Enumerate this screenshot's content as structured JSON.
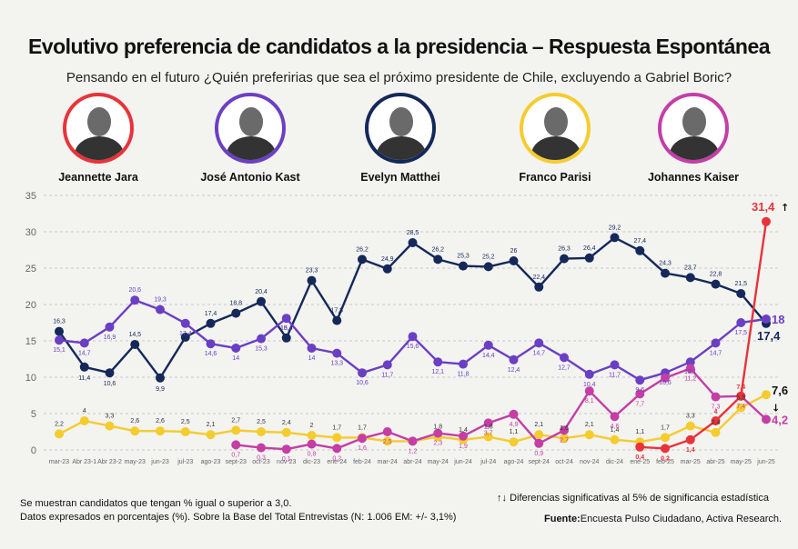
{
  "title": "Evolutivo preferencia de candidatos a la presidencia – Respuesta Espontánea",
  "subtitle": "Pensando en el futuro ¿Quién preferirias que sea el próximo presidente de Chile, excluyendo a Gabriel Boric?",
  "candidates": [
    {
      "name": "Jeannette Jara",
      "color": "#e8333a",
      "icon": "jara-portrait-icon"
    },
    {
      "name": "José Antonio Kast",
      "color": "#6b3fc4",
      "icon": "kast-portrait-icon"
    },
    {
      "name": "Evelyn Matthei",
      "color": "#15285a",
      "icon": "matthei-portrait-icon"
    },
    {
      "name": "Franco Parisi",
      "color": "#f5cc2e",
      "icon": "parisi-portrait-icon"
    },
    {
      "name": "Johannes Kaiser",
      "color": "#c43ea6",
      "icon": "kaiser-portrait-icon"
    }
  ],
  "footnotes": {
    "note1": "Se muestran candidatos que tengan % igual o superior a 3,0.",
    "note2": "Datos expresados en porcentajes (%). Sobre la Base del Total Entrevistas (N: 1.006 EM: +/- 3,1%)",
    "significance": "Diferencias significativas al 5% de significancia estadística",
    "source_label": "Fuente:",
    "source_text": "Encuesta Pulso Ciudadano,  Activa Research."
  },
  "chart_data": {
    "type": "line",
    "ylim": [
      0,
      35
    ],
    "yticks": [
      0,
      5,
      10,
      15,
      20,
      25,
      30,
      35
    ],
    "categories": [
      "mar-23",
      "Abr 23-1",
      "Abr 23-2",
      "may-23",
      "jun-23",
      "jul-23",
      "ago-23",
      "sept-23",
      "oct-23",
      "nov-23",
      "dic-23",
      "ene-24",
      "feb-24",
      "mar-24",
      "abr-24",
      "may-24",
      "jun-24",
      "jul-24",
      "ago-24",
      "sept-24",
      "oct-24",
      "nov-24",
      "dic-24",
      "ene-25",
      "feb-25",
      "mar-25",
      "abr-25",
      "may-25",
      "jun-25"
    ],
    "series": [
      {
        "name": "Evelyn Matthei",
        "color": "#15285a",
        "values": [
          16.3,
          11.4,
          10.6,
          14.5,
          9.9,
          15.5,
          17.4,
          18.8,
          20.4,
          15.4,
          23.3,
          17.8,
          26.2,
          24.9,
          28.5,
          26.2,
          25.3,
          25.2,
          26,
          22.4,
          26.3,
          26.4,
          29.2,
          27.4,
          24.3,
          23.7,
          22.8,
          21.5,
          17.4
        ],
        "labels": [
          "16,3",
          "11,4",
          "10,6",
          "14,5",
          "9,9",
          "",
          "17,4",
          "18,8",
          "20,4",
          "15,4",
          "23,3",
          "17,8",
          "26,2",
          "24,9",
          "28,5",
          "26,2",
          "25,3",
          "25,2",
          "26",
          "22,4",
          "26,3",
          "26,4",
          "29,2",
          "27,4",
          "24,3",
          "23,7",
          "22,8",
          "21,5",
          "17,4"
        ]
      },
      {
        "name": "José Antonio Kast",
        "color": "#6b3fc4",
        "values": [
          15.1,
          14.7,
          16.9,
          20.6,
          19.3,
          17.4,
          14.6,
          14,
          15.3,
          18.1,
          14,
          13.3,
          10.6,
          11.7,
          15.6,
          12.1,
          11.8,
          14.4,
          12.4,
          14.7,
          12.7,
          10.4,
          11.7,
          9.6,
          10.6,
          12.1,
          14.7,
          17.5,
          18
        ],
        "labels": [
          "15,1",
          "14,7",
          "16,9",
          "20,6",
          "19,3",
          "17,4",
          "14,6",
          "14",
          "15,3",
          "18,1",
          "14",
          "13,3",
          "10,6",
          "11,7",
          "15,6",
          "12,1",
          "11,8",
          "14,4",
          "12,4",
          "14,7",
          "12,7",
          "10,4",
          "11,7",
          "9,6",
          "10,6",
          "12,1",
          "14,7",
          "17,5",
          "18"
        ]
      },
      {
        "name": "Franco Parisi",
        "color": "#f5cc2e",
        "values": [
          2.2,
          4,
          3.3,
          2.6,
          2.6,
          2.5,
          2.1,
          2.7,
          2.5,
          2.4,
          2,
          1.7,
          1.7,
          1.2,
          1.2,
          1.8,
          1.4,
          1.8,
          1.1,
          2.1,
          1.6,
          2.1,
          1.4,
          1.1,
          1.7,
          3.3,
          2.4,
          5.8,
          7.6
        ],
        "labels": [
          "2,2",
          "4",
          "3,3",
          "2,6",
          "2,6",
          "2,5",
          "2,1",
          "2,7",
          "2,5",
          "2,4",
          "2",
          "1,7",
          "1,7",
          "",
          "",
          "1,8",
          "1,4",
          "1,8",
          "1,1",
          "2,1",
          "1,6",
          "2,1",
          "1,4",
          "1,1",
          "1,7",
          "3,3",
          "2,4",
          "5,8",
          "7,6"
        ]
      },
      {
        "name": "Johannes Kaiser",
        "color": "#c43ea6",
        "values": [
          null,
          null,
          null,
          null,
          null,
          null,
          null,
          0.7,
          0.3,
          0.1,
          0.8,
          0.2,
          1.6,
          2.5,
          1.2,
          2.3,
          1.9,
          3.7,
          4.9,
          0.9,
          2.7,
          8.1,
          4.6,
          7.7,
          9.9,
          11.2,
          7.3,
          7.4,
          4.2
        ],
        "labels": [
          "",
          "",
          "",
          "",
          "",
          "",
          "",
          "0,7",
          "0,3",
          "0,1",
          "0,8",
          "0,2",
          "1,6",
          "2,5",
          "1,2",
          "2,3",
          "1,9",
          "3,7",
          "4,9",
          "0,9",
          "2,7",
          "8,1",
          "4,6",
          "7,7",
          "",
          "11,2",
          "7,3",
          "7,4",
          "4,2"
        ]
      },
      {
        "name": "Jeannette Jara",
        "color": "#e8333a",
        "values": [
          null,
          null,
          null,
          null,
          null,
          null,
          null,
          null,
          null,
          null,
          null,
          null,
          null,
          null,
          null,
          null,
          null,
          null,
          null,
          null,
          null,
          null,
          null,
          0.4,
          0.2,
          1.4,
          4,
          7.4,
          31.4
        ],
        "labels": [
          "",
          "",
          "",
          "",
          "",
          "",
          "",
          "",
          "",
          "",
          "",
          "",
          "",
          "",
          "",
          "",
          "",
          "",
          "",
          "",
          "",
          "",
          "",
          "0,4",
          "0,2",
          "1,4",
          "4",
          "7,4",
          "31,4"
        ]
      }
    ],
    "end_labels": [
      {
        "series": "Jeannette Jara",
        "text": "31,4",
        "arrow": "↑"
      },
      {
        "series": "José Antonio Kast",
        "text": "18"
      },
      {
        "series": "Evelyn Matthei",
        "text": "17,4"
      },
      {
        "series": "Franco Parisi",
        "text": "7,6"
      },
      {
        "series": "Johannes Kaiser",
        "text": "4,2",
        "arrow": "↓"
      }
    ],
    "grid": true
  }
}
